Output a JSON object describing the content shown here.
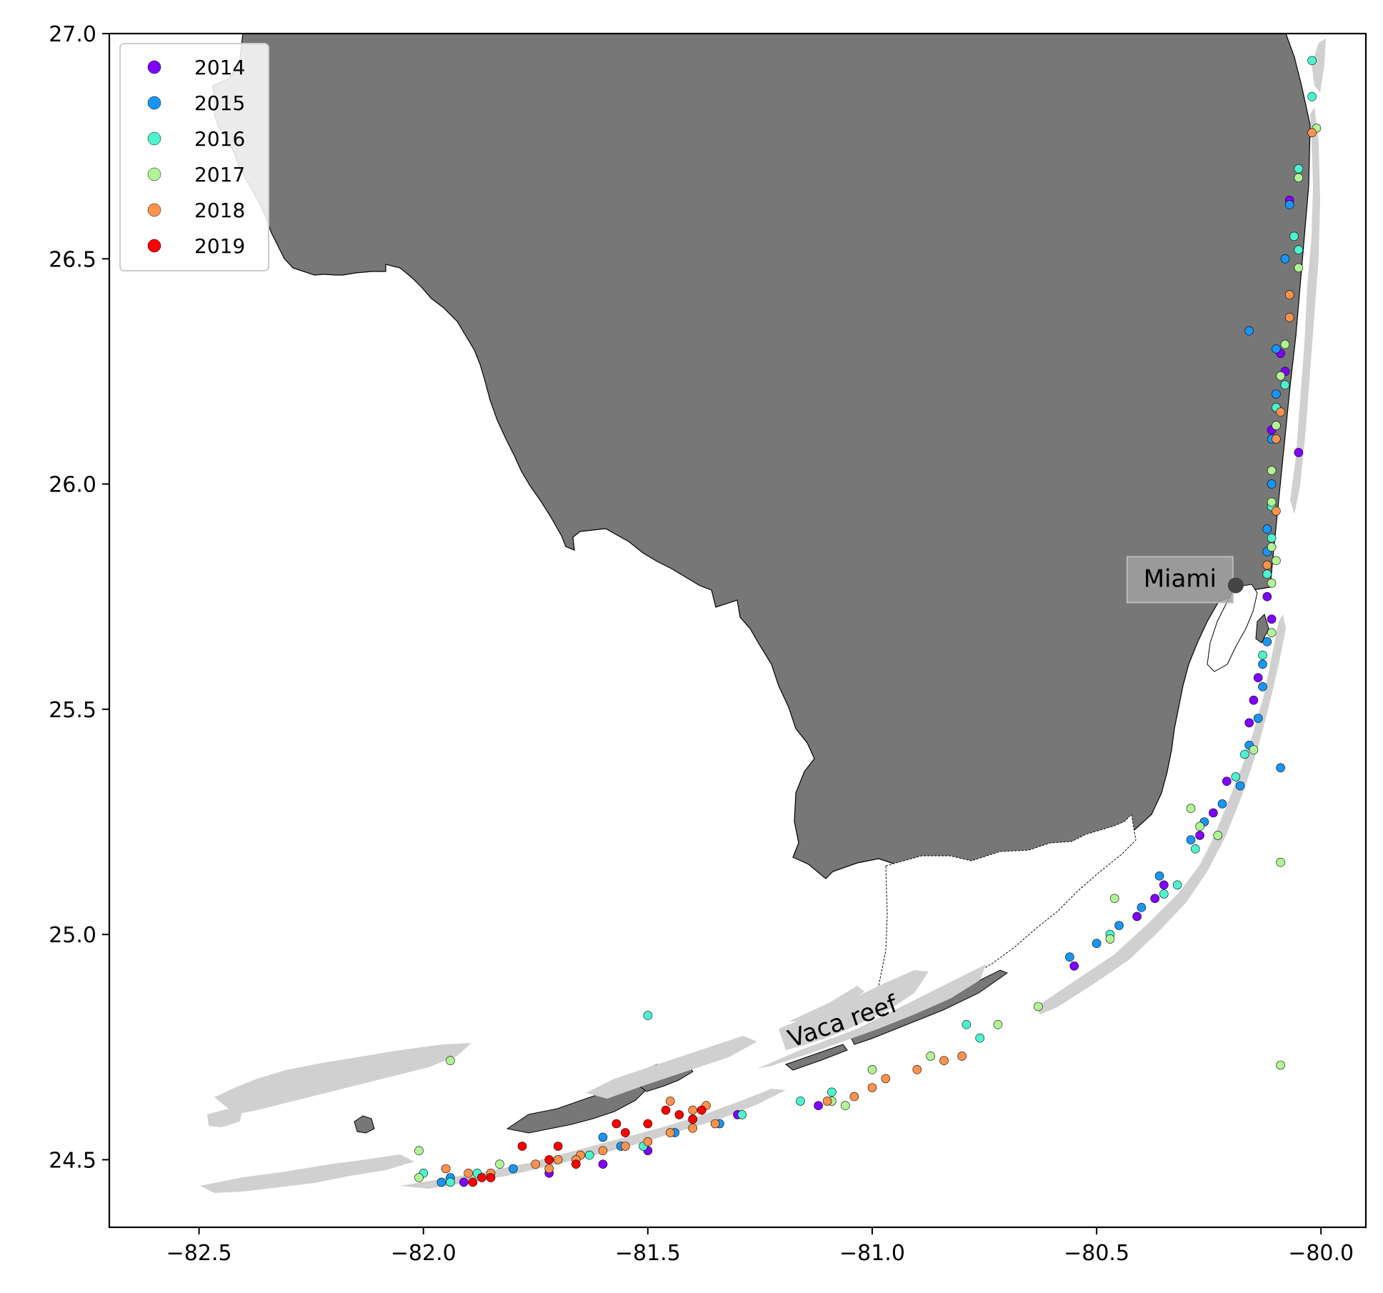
{
  "chart_data": {
    "type": "scatter",
    "title": "",
    "xlabel": "",
    "ylabel": "",
    "xlim": [
      -82.7,
      -79.9
    ],
    "ylim": [
      24.35,
      27.0
    ],
    "x_ticks": [
      -82.5,
      -82.0,
      -81.5,
      -81.0,
      -80.5,
      -80.0
    ],
    "x_tick_labels": [
      "−82.5",
      "−82.0",
      "−81.5",
      "−81.0",
      "−80.5",
      "−80.0"
    ],
    "y_ticks": [
      24.5,
      25.0,
      25.5,
      26.0,
      26.5,
      27.0
    ],
    "y_tick_labels": [
      "24.5",
      "25.0",
      "25.5",
      "26.0",
      "26.5",
      "27.0"
    ],
    "grid": false,
    "legend_position": "top-left",
    "land_color": "#777777",
    "reef_color": "#d0d0d0",
    "annotations": [
      {
        "text": "Miami",
        "lon": -80.19,
        "lat": 25.775,
        "style": "boxed-label-with-marker"
      },
      {
        "text": "Vaca reef",
        "lon": -81.06,
        "lat": 24.79,
        "rotation": -19
      }
    ],
    "series": [
      {
        "name": "2014",
        "color": "#8000ff",
        "points": [
          [
            -80.07,
            26.63
          ],
          [
            -80.09,
            26.29
          ],
          [
            -80.08,
            26.25
          ],
          [
            -80.11,
            26.12
          ],
          [
            -80.05,
            26.07
          ],
          [
            -80.12,
            25.75
          ],
          [
            -80.11,
            25.7
          ],
          [
            -80.14,
            25.57
          ],
          [
            -80.15,
            25.52
          ],
          [
            -80.16,
            25.47
          ],
          [
            -80.21,
            25.34
          ],
          [
            -80.24,
            25.27
          ],
          [
            -80.27,
            25.22
          ],
          [
            -80.35,
            25.11
          ],
          [
            -80.37,
            25.08
          ],
          [
            -80.41,
            25.04
          ],
          [
            -80.55,
            24.93
          ],
          [
            -81.12,
            24.62
          ],
          [
            -81.3,
            24.6
          ],
          [
            -81.5,
            24.52
          ],
          [
            -81.6,
            24.49
          ],
          [
            -81.72,
            24.47
          ],
          [
            -81.91,
            24.45
          ]
        ]
      },
      {
        "name": "2015",
        "color": "#1996f3",
        "points": [
          [
            -80.16,
            26.34
          ],
          [
            -80.07,
            26.62
          ],
          [
            -80.08,
            26.5
          ],
          [
            -80.1,
            26.3
          ],
          [
            -80.1,
            26.2
          ],
          [
            -80.11,
            26.1
          ],
          [
            -80.11,
            26.0
          ],
          [
            -80.12,
            25.9
          ],
          [
            -80.12,
            25.85
          ],
          [
            -80.12,
            25.65
          ],
          [
            -80.13,
            25.6
          ],
          [
            -80.13,
            25.55
          ],
          [
            -80.14,
            25.48
          ],
          [
            -80.16,
            25.42
          ],
          [
            -80.09,
            25.37
          ],
          [
            -80.18,
            25.33
          ],
          [
            -80.22,
            25.29
          ],
          [
            -80.26,
            25.25
          ],
          [
            -80.29,
            25.21
          ],
          [
            -80.36,
            25.13
          ],
          [
            -80.4,
            25.06
          ],
          [
            -80.45,
            25.02
          ],
          [
            -80.5,
            24.98
          ],
          [
            -80.56,
            24.95
          ],
          [
            -81.34,
            24.58
          ],
          [
            -81.44,
            24.56
          ],
          [
            -81.56,
            24.53
          ],
          [
            -81.6,
            24.55
          ],
          [
            -81.8,
            24.48
          ],
          [
            -81.96,
            24.45
          ],
          [
            -81.94,
            24.46
          ]
        ]
      },
      {
        "name": "2016",
        "color": "#4df3ce",
        "points": [
          [
            -80.02,
            26.94
          ],
          [
            -80.02,
            26.86
          ],
          [
            -80.05,
            26.7
          ],
          [
            -80.06,
            26.55
          ],
          [
            -80.05,
            26.52
          ],
          [
            -80.08,
            26.22
          ],
          [
            -80.1,
            26.17
          ],
          [
            -80.11,
            25.95
          ],
          [
            -80.11,
            25.88
          ],
          [
            -80.12,
            25.8
          ],
          [
            -80.13,
            25.62
          ],
          [
            -80.17,
            25.4
          ],
          [
            -80.19,
            25.35
          ],
          [
            -80.28,
            25.19
          ],
          [
            -80.32,
            25.11
          ],
          [
            -80.35,
            25.09
          ],
          [
            -80.47,
            25.0
          ],
          [
            -80.79,
            24.8
          ],
          [
            -80.76,
            24.77
          ],
          [
            -81.09,
            24.65
          ],
          [
            -81.16,
            24.63
          ],
          [
            -81.29,
            24.6
          ],
          [
            -81.5,
            24.82
          ],
          [
            -81.51,
            24.53
          ],
          [
            -81.63,
            24.51
          ],
          [
            -81.88,
            24.47
          ],
          [
            -81.94,
            24.45
          ],
          [
            -82.0,
            24.47
          ]
        ]
      },
      {
        "name": "2017",
        "color": "#b2f396",
        "points": [
          [
            -80.01,
            26.79
          ],
          [
            -80.05,
            26.68
          ],
          [
            -80.05,
            26.48
          ],
          [
            -80.08,
            26.31
          ],
          [
            -80.09,
            26.24
          ],
          [
            -80.1,
            26.13
          ],
          [
            -80.11,
            26.03
          ],
          [
            -80.11,
            25.96
          ],
          [
            -80.11,
            25.86
          ],
          [
            -80.1,
            25.83
          ],
          [
            -80.11,
            25.78
          ],
          [
            -80.11,
            25.67
          ],
          [
            -80.15,
            25.41
          ],
          [
            -80.09,
            25.16
          ],
          [
            -80.23,
            25.22
          ],
          [
            -80.27,
            25.24
          ],
          [
            -80.29,
            25.28
          ],
          [
            -80.46,
            25.08
          ],
          [
            -80.47,
            24.99
          ],
          [
            -80.09,
            24.71
          ],
          [
            -80.63,
            24.84
          ],
          [
            -80.72,
            24.8
          ],
          [
            -80.87,
            24.73
          ],
          [
            -81.0,
            24.7
          ],
          [
            -81.06,
            24.62
          ],
          [
            -81.09,
            24.63
          ],
          [
            -81.4,
            24.59
          ],
          [
            -81.94,
            24.72
          ],
          [
            -82.01,
            24.52
          ],
          [
            -81.83,
            24.49
          ],
          [
            -82.01,
            24.46
          ]
        ]
      },
      {
        "name": "2018",
        "color": "#ff924d",
        "points": [
          [
            -80.02,
            26.78
          ],
          [
            -80.07,
            26.42
          ],
          [
            -80.07,
            26.37
          ],
          [
            -80.09,
            26.16
          ],
          [
            -80.1,
            26.1
          ],
          [
            -80.1,
            25.94
          ],
          [
            -80.12,
            25.82
          ],
          [
            -80.8,
            24.73
          ],
          [
            -80.84,
            24.72
          ],
          [
            -80.9,
            24.7
          ],
          [
            -80.97,
            24.68
          ],
          [
            -81.0,
            24.66
          ],
          [
            -81.04,
            24.64
          ],
          [
            -81.1,
            24.63
          ],
          [
            -81.35,
            24.58
          ],
          [
            -81.4,
            24.57
          ],
          [
            -81.45,
            24.56
          ],
          [
            -81.5,
            24.54
          ],
          [
            -81.55,
            24.53
          ],
          [
            -81.6,
            24.52
          ],
          [
            -81.65,
            24.51
          ],
          [
            -81.7,
            24.5
          ],
          [
            -81.75,
            24.49
          ],
          [
            -81.85,
            24.47
          ],
          [
            -81.9,
            24.47
          ],
          [
            -81.95,
            24.48
          ],
          [
            -81.45,
            24.63
          ],
          [
            -81.4,
            24.61
          ],
          [
            -81.37,
            24.62
          ],
          [
            -81.66,
            24.5
          ],
          [
            -81.72,
            24.48
          ]
        ]
      },
      {
        "name": "2019",
        "color": "#ff0000",
        "points": [
          [
            -81.4,
            24.59
          ],
          [
            -81.43,
            24.6
          ],
          [
            -81.38,
            24.61
          ],
          [
            -81.46,
            24.61
          ],
          [
            -81.5,
            24.58
          ],
          [
            -81.55,
            24.56
          ],
          [
            -81.57,
            24.58
          ],
          [
            -81.7,
            24.53
          ],
          [
            -81.72,
            24.5
          ],
          [
            -81.66,
            24.49
          ],
          [
            -81.78,
            24.53
          ],
          [
            -81.85,
            24.46
          ],
          [
            -81.87,
            24.46
          ],
          [
            -81.89,
            24.45
          ]
        ]
      }
    ]
  }
}
